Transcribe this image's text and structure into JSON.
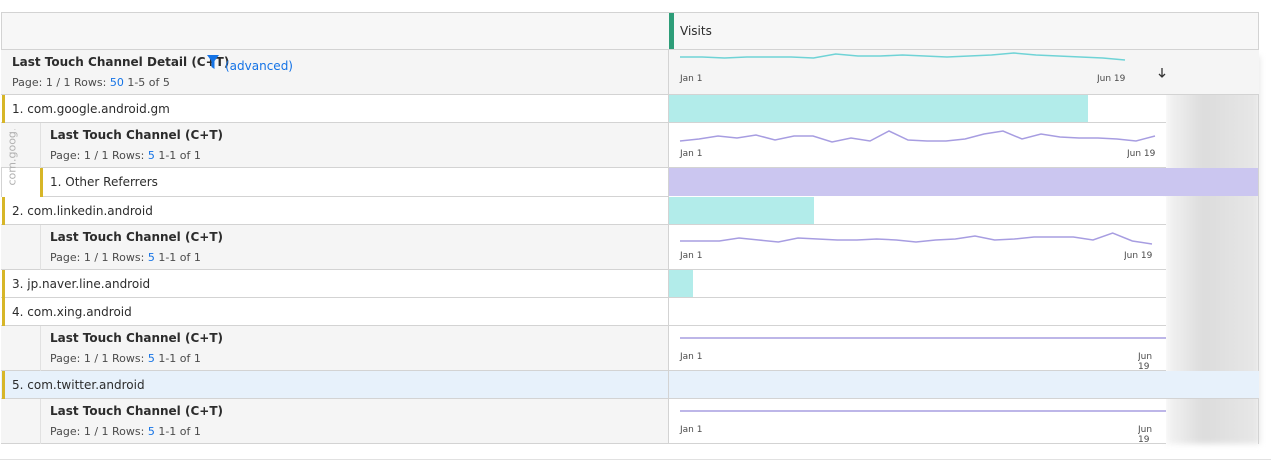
{
  "header": {
    "metric": "Visits"
  },
  "dimension": {
    "title": "Last Touch Channel Detail (C+T)",
    "filter_label": "(advanced)",
    "page": "Page: 1 / 1",
    "rows_label": "Rows:",
    "rows": 50,
    "range": "1-5 of 5",
    "spark_start": "Jan 1",
    "spark_end": "Jun 19"
  },
  "items": [
    {
      "number": "1.",
      "name": "com.google.android.gm",
      "breakdown": {
        "collapsed_label": "com.goog...",
        "title": "Last Touch Channel (C+T)",
        "page": "Page: 1 / 1",
        "rows_label": "Rows:",
        "rows": 5,
        "range": "1-1 of 1",
        "spark_start": "Jan 1",
        "spark_end": "Jun 19",
        "rows_list": [
          {
            "number": "1.",
            "name": "Other Referrers"
          }
        ]
      }
    },
    {
      "number": "2.",
      "name": "com.linkedin.android",
      "breakdown": {
        "title": "Last Touch Channel (C+T)",
        "page": "Page: 1 / 1",
        "rows_label": "Rows:",
        "rows": 5,
        "range": "1-1 of 1",
        "spark_start": "Jan 1",
        "spark_end": "Jun 19"
      }
    },
    {
      "number": "3.",
      "name": "jp.naver.line.android"
    },
    {
      "number": "4.",
      "name": "com.xing.android",
      "breakdown": {
        "title": "Last Touch Channel (C+T)",
        "page": "Page: 1 / 1",
        "rows_label": "Rows:",
        "rows": 5,
        "range": "1-1 of 1",
        "spark_start": "Jan 1",
        "spark_end": "Jun 19"
      }
    },
    {
      "number": "5.",
      "name": "com.twitter.android",
      "breakdown": {
        "title": "Last Touch Channel (C+T)",
        "page": "Page: 1 / 1",
        "rows_label": "Rows:",
        "rows": 5,
        "range": "1-1 of 1",
        "spark_start": "Jan 1",
        "spark_end": "Jun 19"
      }
    }
  ]
}
